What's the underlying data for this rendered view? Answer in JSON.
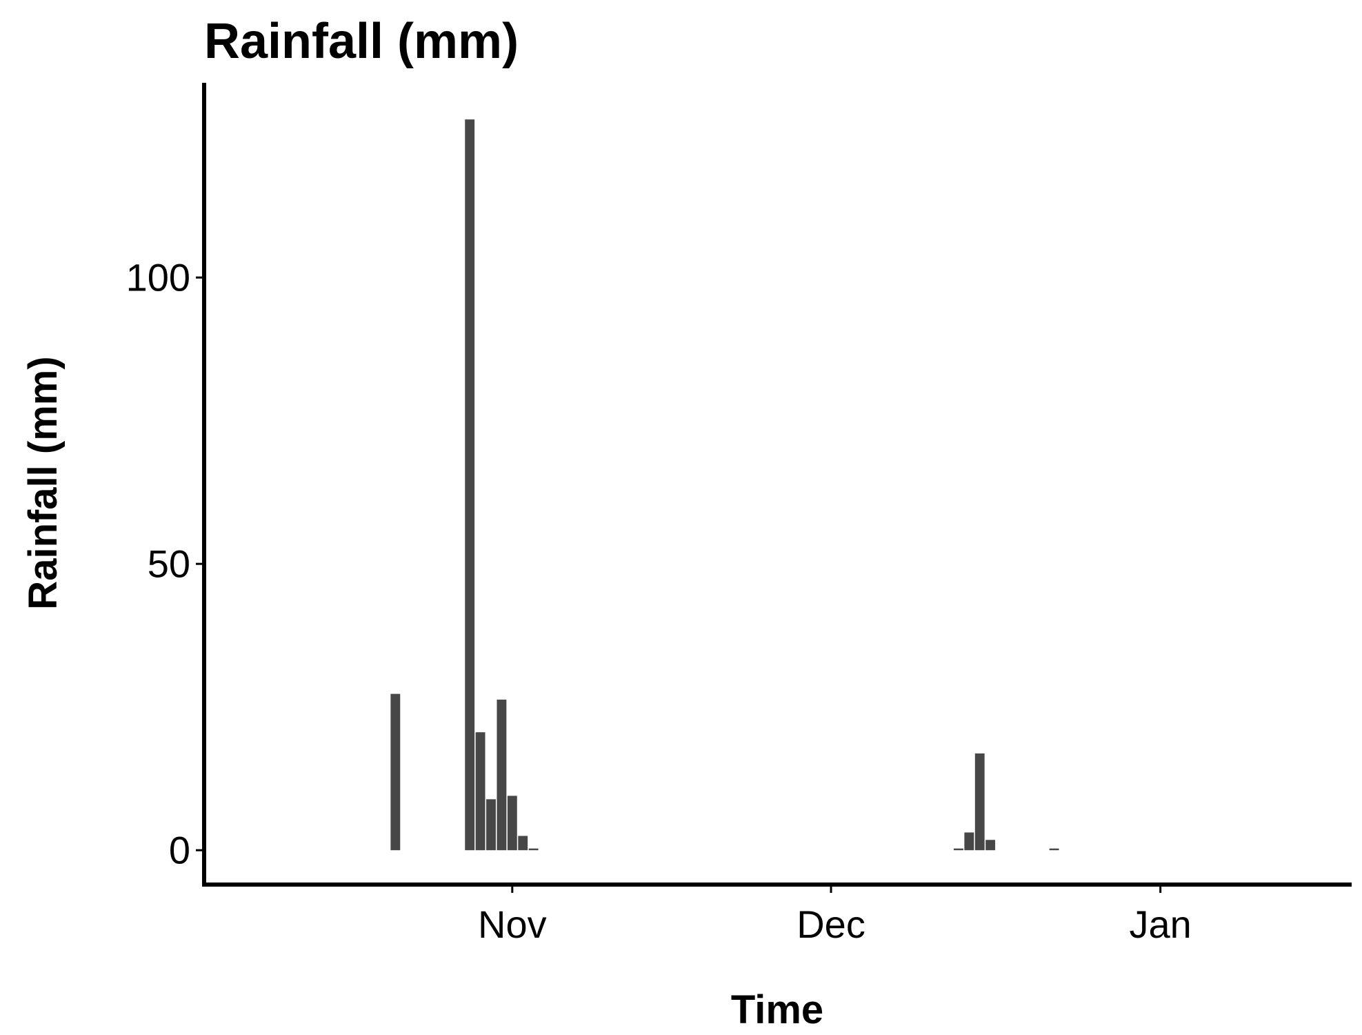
{
  "chart_data": {
    "type": "bar",
    "title": "Rainfall (mm)",
    "xlabel": "Time",
    "ylabel": "Rainfall (mm)",
    "x_axis_type": "date",
    "x_tick_labels": [
      "Nov",
      "Dec",
      "Jan"
    ],
    "x_tick_dates": [
      "2019-11-01",
      "2019-12-01",
      "2020-01-01"
    ],
    "xlim": [
      "2019-10-03",
      "2020-01-19"
    ],
    "y_ticks": [
      0,
      50,
      100
    ],
    "ylim": [
      -6,
      134
    ],
    "grid": false,
    "legend": "none",
    "bar_color": "#474747",
    "series": [
      {
        "x": [
          "2019-10-21",
          "2019-10-28",
          "2019-10-29",
          "2019-10-30",
          "2019-10-31",
          "2019-11-01",
          "2019-11-02",
          "2019-11-03",
          "2019-12-13",
          "2019-12-14",
          "2019-12-15",
          "2019-12-16",
          "2019-12-22"
        ],
        "values": [
          27.3,
          127.6,
          20.6,
          8.9,
          26.3,
          9.5,
          2.5,
          0.3,
          0.3,
          3.1,
          16.9,
          1.8,
          0.3
        ]
      }
    ]
  }
}
